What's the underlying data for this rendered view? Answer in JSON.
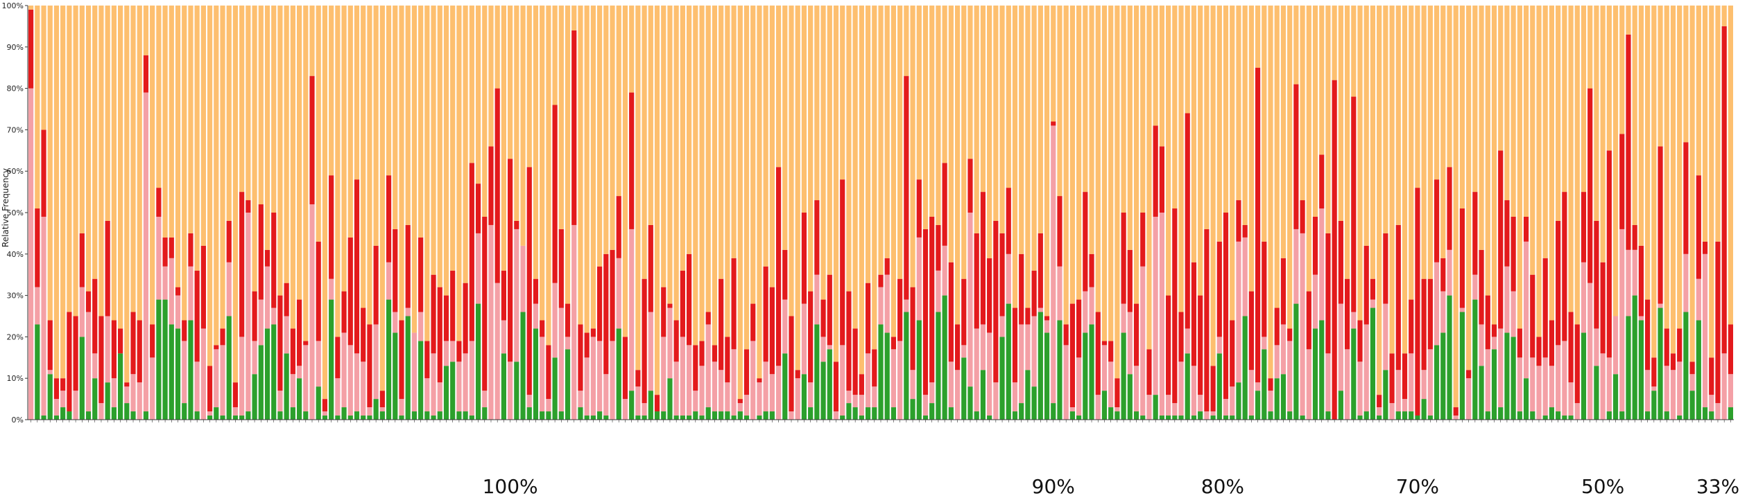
{
  "chart_data": {
    "type": "bar",
    "stacked": true,
    "ylabel": "Relative Frequency",
    "ylim": [
      0,
      100
    ],
    "y_ticks": [
      "0%",
      "10%",
      "20%",
      "30%",
      "40%",
      "50%",
      "60%",
      "70%",
      "80%",
      "90%",
      "100%"
    ],
    "grid": false,
    "legend": "none",
    "colors": {
      "green": "#2ca02c",
      "pink": "#f4a0a6",
      "red": "#e31a1c",
      "orange": "#fdbf6f",
      "blue": "#1f78b4",
      "white": "#ffffff"
    },
    "group_labels": [
      {
        "label": "100%",
        "first_bar": 0,
        "last_bar": 150
      },
      {
        "label": "90%",
        "first_bar": 151,
        "last_bar": 169
      },
      {
        "label": "80%",
        "first_bar": 170,
        "last_bar": 203
      },
      {
        "label": "70%",
        "first_bar": 204,
        "last_bar": 230
      },
      {
        "label": "50%",
        "first_bar": 231,
        "last_bar": 261
      },
      {
        "label": "33%",
        "first_bar": 262,
        "last_bar": 266
      }
    ],
    "key_bars": [
      {
        "bar": 0,
        "green": 0,
        "pink": 80,
        "red": 19,
        "orange": 1
      },
      {
        "bar": 18,
        "green": 2,
        "pink": 77,
        "red": 9,
        "orange": 12
      },
      {
        "bar": 44,
        "green": 0,
        "pink": 52,
        "red": 31,
        "orange": 17
      },
      {
        "bar": 85,
        "green": 0,
        "pink": 47,
        "red": 47,
        "orange": 6
      },
      {
        "bar": 137,
        "green": 26,
        "pink": 3,
        "red": 54,
        "orange": 17
      },
      {
        "bar": 160,
        "green": 4,
        "pink": 67,
        "red": 1,
        "orange": 28
      },
      {
        "bar": 192,
        "green": 7,
        "pink": 2,
        "red": 76,
        "orange": 15
      },
      {
        "bar": 204,
        "green": 0,
        "pink": 0,
        "red": 82,
        "orange": 18
      },
      {
        "bar": 244,
        "green": 0,
        "pink": 33,
        "red": 47,
        "orange": 20
      },
      {
        "bar": 265,
        "green": 0,
        "pink": 16,
        "red": 79,
        "orange": 5
      }
    ]
  }
}
